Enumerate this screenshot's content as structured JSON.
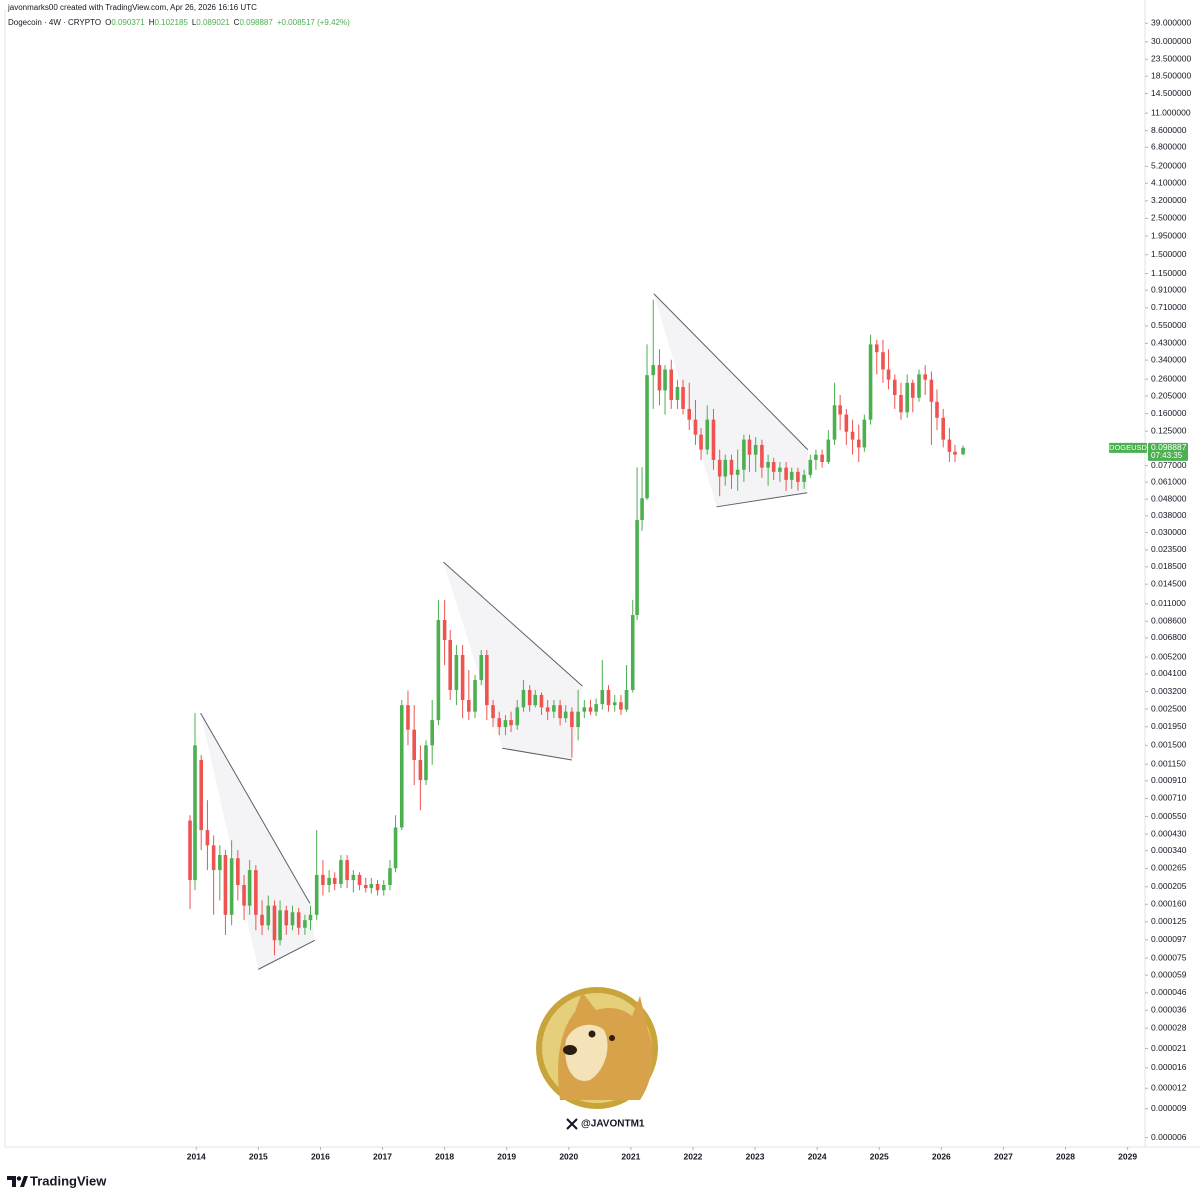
{
  "header": {
    "credit": "javonmarks00 created with TradingView.com, Apr 26, 2026 16:16 UTC",
    "symbol": "Dogecoin · 4W · CRYPTO",
    "ohlc": [
      {
        "label": "O",
        "value": "0.090371"
      },
      {
        "label": "H",
        "value": "0.102185"
      },
      {
        "label": "L",
        "value": "0.089021"
      },
      {
        "label": "C",
        "value": "0.098887"
      }
    ],
    "change": "+0.008517 (+9.42%)"
  },
  "chart_data": {
    "type": "candlestick",
    "log_scale": true,
    "up_color": "#4caf50",
    "down_color": "#ef5350",
    "x": [
      2013.9,
      2013.98,
      2014.08,
      2014.18,
      2014.28,
      2014.38,
      2014.47,
      2014.57,
      2014.67,
      2014.77,
      2014.86,
      2014.96,
      2015.06,
      2015.16,
      2015.26,
      2015.35,
      2015.45,
      2015.55,
      2015.65,
      2015.75,
      2015.84,
      2015.94,
      2016.04,
      2016.14,
      2016.23,
      2016.33,
      2016.43,
      2016.53,
      2016.63,
      2016.73,
      2016.82,
      2016.92,
      2017.02,
      2017.12,
      2017.21,
      2017.31,
      2017.41,
      2017.51,
      2017.61,
      2017.7,
      2017.8,
      2017.9,
      2018.0,
      2018.09,
      2018.19,
      2018.29,
      2018.39,
      2018.49,
      2018.59,
      2018.68,
      2018.78,
      2018.88,
      2018.98,
      2019.07,
      2019.17,
      2019.27,
      2019.37,
      2019.46,
      2019.56,
      2019.66,
      2019.76,
      2019.86,
      2019.95,
      2020.05,
      2020.15,
      2020.25,
      2020.35,
      2020.44,
      2020.54,
      2020.64,
      2020.74,
      2020.84,
      2020.93,
      2021.03,
      2021.1,
      2021.18,
      2021.26,
      2021.36,
      2021.46,
      2021.55,
      2021.65,
      2021.75,
      2021.84,
      2021.94,
      2022.04,
      2022.13,
      2022.23,
      2022.33,
      2022.43,
      2022.52,
      2022.62,
      2022.72,
      2022.82,
      2022.91,
      2023.01,
      2023.11,
      2023.21,
      2023.3,
      2023.4,
      2023.5,
      2023.59,
      2023.69,
      2023.79,
      2023.89,
      2023.98,
      2024.08,
      2024.18,
      2024.28,
      2024.37,
      2024.47,
      2024.57,
      2024.67,
      2024.76,
      2024.86,
      2024.96,
      2025.06,
      2025.15,
      2025.25,
      2025.35,
      2025.45,
      2025.54,
      2025.64,
      2025.74,
      2025.84,
      2025.93,
      2026.03,
      2026.13,
      2026.22,
      2026.35
    ],
    "open": [
      0.00052,
      0.000225,
      0.00122,
      0.000455,
      0.000367,
      0.000259,
      0.00032,
      0.000138,
      0.000306,
      0.00021,
      0.000157,
      0.000259,
      0.000138,
      0.000119,
      0.000157,
      9.64e-05,
      0.000147,
      0.000119,
      0.000143,
      0.000115,
      0.000128,
      0.000138,
      0.000242,
      0.00021,
      0.000232,
      0.000213,
      0.000298,
      0.000225,
      0.000242,
      0.00021,
      0.000201,
      0.000213,
      0.000195,
      0.00021,
      0.000266,
      0.000472,
      0.00264,
      0.00187,
      0.00122,
      0.000919,
      0.0015,
      0.00214,
      0.00875,
      0.00661,
      0.00327,
      0.00535,
      0.00284,
      0.00241,
      0.00376,
      0.00535,
      0.00264,
      0.0022,
      0.00194,
      0.00214,
      0.00199,
      0.00256,
      0.00327,
      0.00264,
      0.00305,
      0.00256,
      0.00241,
      0.00264,
      0.0022,
      0.00241,
      0.00194,
      0.00241,
      0.00256,
      0.00241,
      0.00268,
      0.00327,
      0.00264,
      0.00275,
      0.00248,
      0.00327,
      0.00939,
      0.0358,
      0.0486,
      0.275,
      0.317,
      0.222,
      0.298,
      0.194,
      0.233,
      0.171,
      0.147,
      0.119,
      0.0965,
      0.147,
      0.0835,
      0.066,
      0.0835,
      0.0676,
      0.0726,
      0.111,
      0.0898,
      0.103,
      0.0748,
      0.081,
      0.0705,
      0.0748,
      0.063,
      0.0705,
      0.0612,
      0.0676,
      0.0835,
      0.0898,
      0.081,
      0.111,
      0.18,
      0.158,
      0.124,
      0.111,
      0.0995,
      0.147,
      0.424,
      0.38,
      0.298,
      0.258,
      0.208,
      0.163,
      0.247,
      0.2,
      0.278,
      0.258,
      0.189,
      0.151,
      0.111,
      0.0935,
      0.090371
    ],
    "high": [
      0.00056,
      0.00236,
      0.00131,
      0.000693,
      0.000422,
      0.000367,
      0.000343,
      0.000394,
      0.000343,
      0.000242,
      0.000298,
      0.000278,
      0.000169,
      0.000181,
      0.000169,
      0.000169,
      0.000157,
      0.000157,
      0.000152,
      0.000138,
      0.000157,
      0.000455,
      0.000298,
      0.000259,
      0.000251,
      0.00032,
      0.00032,
      0.000259,
      0.000251,
      0.000232,
      0.000232,
      0.000225,
      0.000225,
      0.000298,
      0.00056,
      0.00284,
      0.00324,
      0.00264,
      0.0015,
      0.00161,
      0.00284,
      0.0116,
      0.0116,
      0.00761,
      0.00616,
      0.00616,
      0.00433,
      0.00404,
      0.00574,
      0.00574,
      0.00284,
      0.00241,
      0.0023,
      0.00241,
      0.00284,
      0.00376,
      0.0035,
      0.00327,
      0.00316,
      0.00284,
      0.00284,
      0.00284,
      0.00264,
      0.00256,
      0.00327,
      0.00284,
      0.00284,
      0.0029,
      0.00499,
      0.0035,
      0.00305,
      0.00305,
      0.00465,
      0.0116,
      0.0752,
      0.0752,
      0.424,
      0.796,
      0.396,
      0.317,
      0.342,
      0.258,
      0.258,
      0.247,
      0.194,
      0.131,
      0.18,
      0.171,
      0.0965,
      0.0898,
      0.0898,
      0.0965,
      0.119,
      0.119,
      0.115,
      0.111,
      0.0898,
      0.086,
      0.081,
      0.081,
      0.0748,
      0.0748,
      0.0726,
      0.0898,
      0.0965,
      0.0965,
      0.127,
      0.247,
      0.208,
      0.171,
      0.147,
      0.137,
      0.158,
      0.486,
      0.453,
      0.453,
      0.396,
      0.278,
      0.247,
      0.278,
      0.258,
      0.298,
      0.317,
      0.29,
      0.225,
      0.171,
      0.131,
      0.103,
      0.102185
    ],
    "low": [
      0.00015,
      0.000195,
      0.000343,
      0.000259,
      0.000138,
      0.000169,
      0.000104,
      0.000119,
      0.000169,
      0.000128,
      0.000138,
      0.000111,
      0.000104,
      0.000111,
      7.8e-05,
      8.98e-05,
      0.000104,
      0.000111,
      0.000104,
      0.000104,
      0.000111,
      0.000128,
      0.000181,
      0.000189,
      0.000195,
      0.000201,
      0.000201,
      0.000189,
      0.000195,
      0.000189,
      0.000186,
      0.000181,
      0.000181,
      0.000195,
      0.000251,
      0.000455,
      0.0015,
      0.000856,
      0.000602,
      0.000856,
      0.00114,
      0.00199,
      0.00465,
      0.00284,
      0.00264,
      0.0022,
      0.00214,
      0.0022,
      0.0035,
      0.00214,
      0.00194,
      0.00173,
      0.00173,
      0.00181,
      0.00187,
      0.00241,
      0.00241,
      0.00256,
      0.0023,
      0.00214,
      0.0022,
      0.00199,
      0.00207,
      0.00126,
      0.00161,
      0.0022,
      0.0023,
      0.00227,
      0.00248,
      0.00241,
      0.00241,
      0.0023,
      0.00241,
      0.00316,
      0.00875,
      0.0308,
      0.0475,
      0.171,
      0.18,
      0.158,
      0.171,
      0.171,
      0.158,
      0.127,
      0.103,
      0.0835,
      0.0898,
      0.0726,
      0.05,
      0.058,
      0.0555,
      0.054,
      0.0612,
      0.0705,
      0.0705,
      0.0649,
      0.058,
      0.063,
      0.0612,
      0.054,
      0.0555,
      0.054,
      0.0555,
      0.0649,
      0.0726,
      0.0748,
      0.0787,
      0.103,
      0.127,
      0.103,
      0.0898,
      0.081,
      0.0935,
      0.137,
      0.278,
      0.247,
      0.225,
      0.171,
      0.147,
      0.151,
      0.163,
      0.189,
      0.208,
      0.103,
      0.127,
      0.0995,
      0.081,
      0.081,
      0.089021
    ],
    "close": [
      0.000225,
      0.0015,
      0.000455,
      0.000367,
      0.000259,
      0.00032,
      0.000138,
      0.000306,
      0.00021,
      0.000157,
      0.000259,
      0.000138,
      0.000119,
      0.000157,
      9.64e-05,
      0.000147,
      0.000119,
      0.000143,
      0.000115,
      0.000128,
      0.000138,
      0.000242,
      0.00021,
      0.000232,
      0.000213,
      0.000298,
      0.000225,
      0.000242,
      0.00021,
      0.000201,
      0.000213,
      0.000195,
      0.00021,
      0.000266,
      0.000472,
      0.00264,
      0.00187,
      0.00122,
      0.000919,
      0.0015,
      0.00214,
      0.00875,
      0.00661,
      0.00327,
      0.00535,
      0.00284,
      0.00241,
      0.00376,
      0.00535,
      0.00264,
      0.0022,
      0.00194,
      0.00214,
      0.00199,
      0.00256,
      0.00327,
      0.00264,
      0.00305,
      0.00256,
      0.00241,
      0.00264,
      0.0022,
      0.00241,
      0.00194,
      0.00241,
      0.00256,
      0.00241,
      0.00268,
      0.00327,
      0.00264,
      0.00275,
      0.00248,
      0.00327,
      0.00939,
      0.0358,
      0.0486,
      0.275,
      0.317,
      0.222,
      0.298,
      0.194,
      0.233,
      0.171,
      0.147,
      0.119,
      0.0965,
      0.147,
      0.0835,
      0.066,
      0.0835,
      0.0676,
      0.0726,
      0.111,
      0.0898,
      0.103,
      0.0748,
      0.081,
      0.0705,
      0.0748,
      0.063,
      0.0705,
      0.0612,
      0.0676,
      0.0835,
      0.0898,
      0.081,
      0.111,
      0.18,
      0.158,
      0.124,
      0.111,
      0.0995,
      0.147,
      0.424,
      0.38,
      0.298,
      0.258,
      0.208,
      0.163,
      0.247,
      0.2,
      0.278,
      0.258,
      0.189,
      0.151,
      0.111,
      0.0935,
      0.0898,
      0.098887
    ],
    "xlim": [
      2010.92,
      2029.28
    ],
    "xticks": [
      2014,
      2015,
      2016,
      2017,
      2018,
      2019,
      2020,
      2021,
      2022,
      2023,
      2024,
      2025,
      2026,
      2027,
      2028,
      2029
    ],
    "ylim": [
      5.4e-06,
      47
    ],
    "yticks": [
      {
        "value": 39,
        "label": "39.000000"
      },
      {
        "value": 30,
        "label": "30.000000"
      },
      {
        "value": 23.5,
        "label": "23.500000"
      },
      {
        "value": 18.5,
        "label": "18.500000"
      },
      {
        "value": 14.5,
        "label": "14.500000"
      },
      {
        "value": 11,
        "label": "11.000000"
      },
      {
        "value": 8.6,
        "label": "8.600000"
      },
      {
        "value": 6.8,
        "label": "6.800000"
      },
      {
        "value": 5.2,
        "label": "5.200000"
      },
      {
        "value": 4.1,
        "label": "4.100000"
      },
      {
        "value": 3.2,
        "label": "3.200000"
      },
      {
        "value": 2.5,
        "label": "2.500000"
      },
      {
        "value": 1.95,
        "label": "1.950000"
      },
      {
        "value": 1.5,
        "label": "1.500000"
      },
      {
        "value": 1.15,
        "label": "1.150000"
      },
      {
        "value": 0.91,
        "label": "0.910000"
      },
      {
        "value": 0.71,
        "label": "0.710000"
      },
      {
        "value": 0.55,
        "label": "0.550000"
      },
      {
        "value": 0.43,
        "label": "0.430000"
      },
      {
        "value": 0.34,
        "label": "0.340000"
      },
      {
        "value": 0.26,
        "label": "0.260000"
      },
      {
        "value": 0.205,
        "label": "0.205000"
      },
      {
        "value": 0.16,
        "label": "0.160000"
      },
      {
        "value": 0.125,
        "label": "0.125000"
      },
      {
        "value": 0.077,
        "label": "0.077000"
      },
      {
        "value": 0.061,
        "label": "0.061000"
      },
      {
        "value": 0.048,
        "label": "0.048000"
      },
      {
        "value": 0.038,
        "label": "0.038000"
      },
      {
        "value": 0.03,
        "label": "0.030000"
      },
      {
        "value": 0.0235,
        "label": "0.023500"
      },
      {
        "value": 0.0185,
        "label": "0.018500"
      },
      {
        "value": 0.0145,
        "label": "0.014500"
      },
      {
        "value": 0.011,
        "label": "0.011000"
      },
      {
        "value": 0.0086,
        "label": "0.008600"
      },
      {
        "value": 0.0068,
        "label": "0.006800"
      },
      {
        "value": 0.0052,
        "label": "0.005200"
      },
      {
        "value": 0.0041,
        "label": "0.004100"
      },
      {
        "value": 0.0032,
        "label": "0.003200"
      },
      {
        "value": 0.0025,
        "label": "0.002500"
      },
      {
        "value": 0.00195,
        "label": "0.001950"
      },
      {
        "value": 0.0015,
        "label": "0.001500"
      },
      {
        "value": 0.00115,
        "label": "0.001150"
      },
      {
        "value": 0.00091,
        "label": "0.000910"
      },
      {
        "value": 0.00071,
        "label": "0.000710"
      },
      {
        "value": 0.00055,
        "label": "0.000550"
      },
      {
        "value": 0.00043,
        "label": "0.000430"
      },
      {
        "value": 0.00034,
        "label": "0.000340"
      },
      {
        "value": 0.000265,
        "label": "0.000265"
      },
      {
        "value": 0.000205,
        "label": "0.000205"
      },
      {
        "value": 0.00016,
        "label": "0.000160"
      },
      {
        "value": 0.000125,
        "label": "0.000125"
      },
      {
        "value": 9.7e-05,
        "label": "0.000097"
      },
      {
        "value": 7.5e-05,
        "label": "0.000075"
      },
      {
        "value": 5.9e-05,
        "label": "0.000059"
      },
      {
        "value": 4.6e-05,
        "label": "0.000046"
      },
      {
        "value": 3.6e-05,
        "label": "0.000036"
      },
      {
        "value": 2.8e-05,
        "label": "0.000028"
      },
      {
        "value": 2.1e-05,
        "label": "0.000021"
      },
      {
        "value": 1.6e-05,
        "label": "0.000016"
      },
      {
        "value": 1.2e-05,
        "label": "0.000012"
      },
      {
        "value": 9e-06,
        "label": "0.000009"
      },
      {
        "value": 6e-06,
        "label": "0.000006"
      }
    ],
    "trendlines": [
      {
        "x": [
          2014.07,
          2015.83
        ],
        "y": [
          0.00236,
          0.000162
        ]
      },
      {
        "x": [
          2015.0,
          2015.91
        ],
        "y": [
          6.4e-05,
          9.64e-05
        ]
      },
      {
        "x": [
          2017.98,
          2020.22
        ],
        "y": [
          0.0198,
          0.00345
        ]
      },
      {
        "x": [
          2018.93,
          2020.05
        ],
        "y": [
          0.00144,
          0.00122
        ]
      },
      {
        "x": [
          2021.37,
          2023.85
        ],
        "y": [
          0.865,
          0.0962
        ]
      },
      {
        "x": [
          2022.38,
          2023.84
        ],
        "y": [
          0.0431,
          0.0525
        ]
      }
    ],
    "price_tag": {
      "symbol": "DOGEUSD",
      "price": "0.098887",
      "countdown": "07:43:35"
    }
  },
  "watermark": {
    "handle": "@JAVONTM1"
  },
  "footer": {
    "brand": "TradingView"
  }
}
